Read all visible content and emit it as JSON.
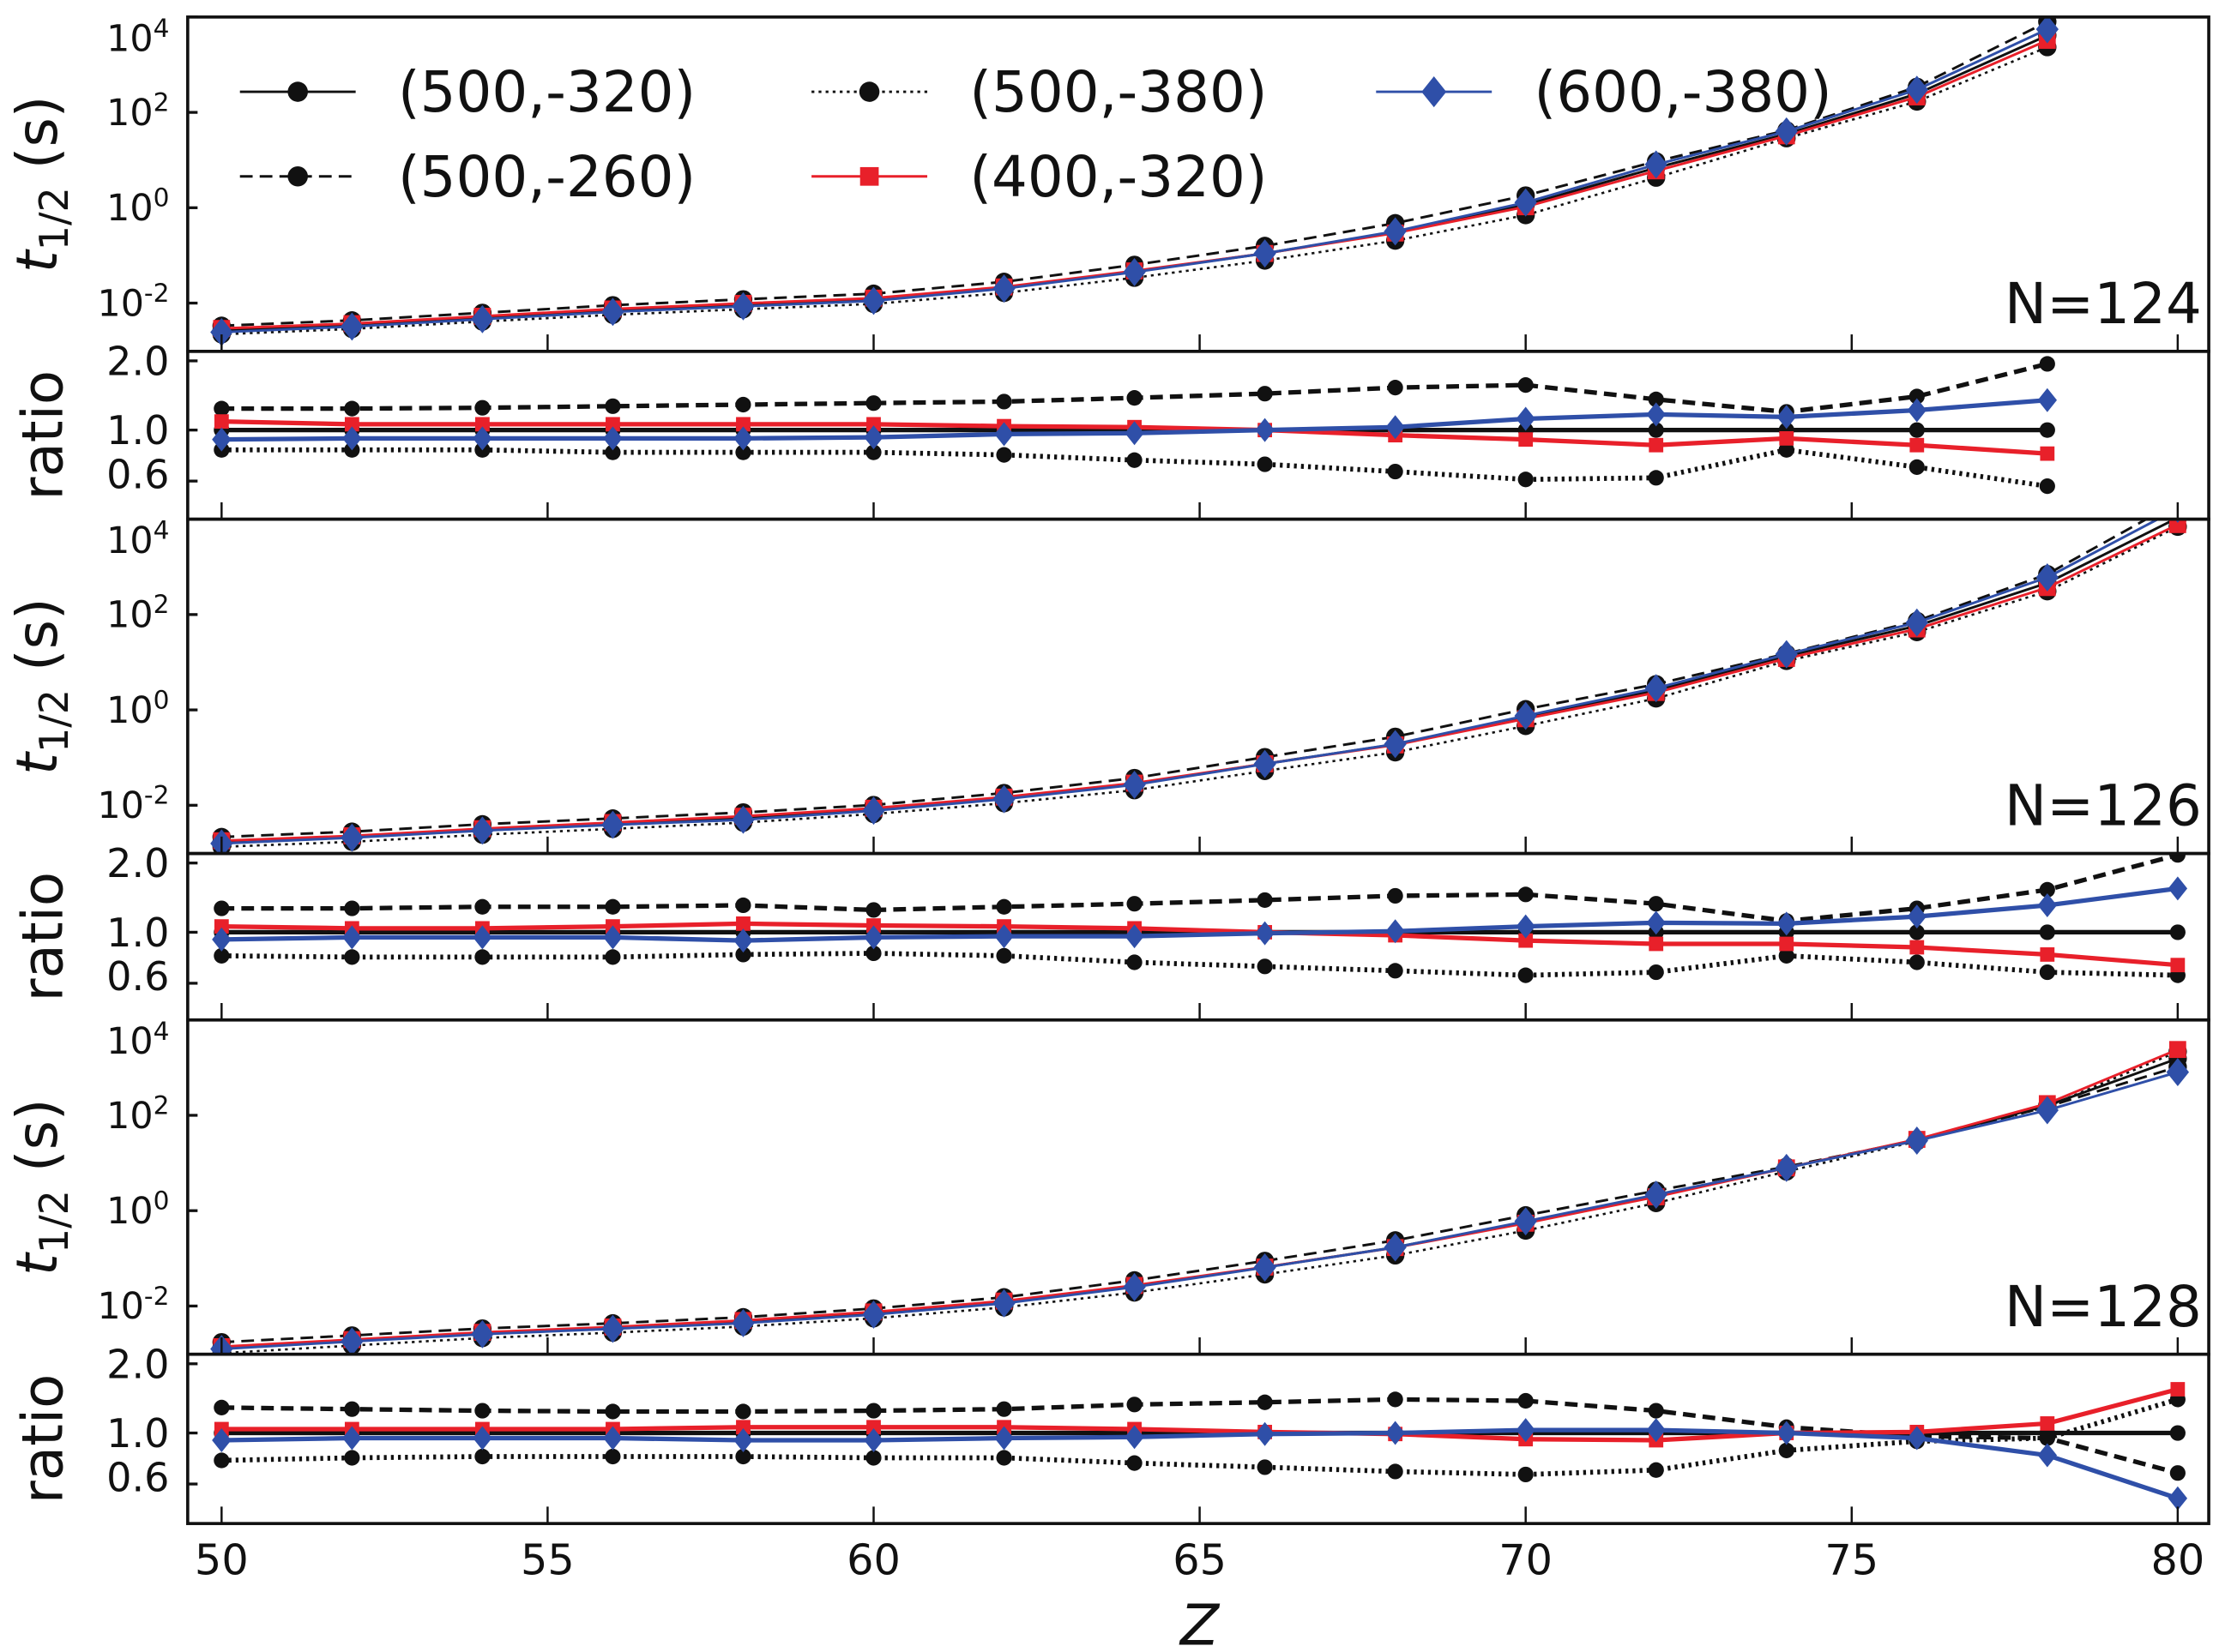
{
  "chart_data": {
    "type": "line",
    "x": [
      50,
      52,
      54,
      56,
      58,
      60,
      62,
      64,
      66,
      68,
      70,
      72,
      74,
      76,
      78,
      80
    ],
    "xlabel": "Z",
    "xlim": [
      49.5,
      80.5
    ],
    "xticks": [
      "50",
      "55",
      "60",
      "65",
      "70",
      "75",
      "80"
    ],
    "ylabel_main": {
      "t": "t",
      "sub": "1/2",
      "unit": " (s)"
    },
    "ylabel_ratio": "ratio",
    "yscale_main": "log",
    "ylim_main": [
      0.00085,
      10000
    ],
    "yticks_main": {
      "base": "10",
      "exponents": [
        "4",
        "2",
        "0",
        "-2"
      ]
    },
    "yscale_ratio": "log",
    "ylim_ratio": [
      0.4,
      2.2
    ],
    "yticks_ratio": [
      "2.0",
      "1.0",
      "0.6"
    ],
    "grid": false,
    "legend_placement": "top-left, first panel",
    "reference_series": "(500,-320)",
    "series_styles": [
      {
        "name": "(500,-320)",
        "color": "#111111",
        "dash": "solid",
        "marker": "circle"
      },
      {
        "name": "(500,-260)",
        "color": "#111111",
        "dash": "dashed",
        "marker": "circle"
      },
      {
        "name": "(500,-380)",
        "color": "#111111",
        "dash": "dotted",
        "marker": "circle"
      },
      {
        "name": "(400,-320)",
        "color": "#e8202a",
        "dash": "solid",
        "marker": "square"
      },
      {
        "name": "(600,-380)",
        "color": "#2f4fa8",
        "dash": "solid",
        "marker": "diamond"
      }
    ],
    "panels": [
      {
        "label": "N=124",
        "t_half_reference": [
          0.0027,
          0.0035,
          0.005,
          0.0071,
          0.0093,
          0.012,
          0.021,
          0.046,
          0.11,
          0.31,
          1.15,
          6.9,
          35,
          245,
          4100
        ],
        "ratio": {
          "(500,-320)": [
            1,
            1,
            1,
            1,
            1,
            1,
            1,
            1,
            1,
            1,
            1,
            1,
            1,
            1,
            1
          ],
          "(500,-260)": [
            1.24,
            1.24,
            1.25,
            1.27,
            1.29,
            1.31,
            1.33,
            1.38,
            1.44,
            1.53,
            1.57,
            1.36,
            1.2,
            1.4,
            1.94
          ],
          "(500,-380)": [
            0.82,
            0.82,
            0.82,
            0.8,
            0.8,
            0.8,
            0.78,
            0.74,
            0.71,
            0.66,
            0.61,
            0.62,
            0.82,
            0.69,
            0.57
          ],
          "(400,-320)": [
            1.09,
            1.06,
            1.06,
            1.06,
            1.06,
            1.06,
            1.04,
            1.03,
            1.0,
            0.95,
            0.91,
            0.86,
            0.92,
            0.86,
            0.79
          ],
          "(600,-380)": [
            0.91,
            0.92,
            0.92,
            0.92,
            0.92,
            0.93,
            0.96,
            0.97,
            1.0,
            1.03,
            1.12,
            1.17,
            1.14,
            1.22,
            1.35
          ]
        }
      },
      {
        "label": "N=126",
        "t_half_reference": [
          0.0017,
          0.0022,
          0.0031,
          0.0041,
          0.0054,
          0.0081,
          0.014,
          0.028,
          0.074,
          0.19,
          0.71,
          2.6,
          13.5,
          58,
          460,
          10700
        ],
        "ratio": {
          "(500,-320)": [
            1,
            1,
            1,
            1,
            1,
            1,
            1,
            1,
            1,
            1,
            1,
            1,
            1,
            1,
            1,
            1
          ],
          "(500,-260)": [
            1.27,
            1.27,
            1.29,
            1.29,
            1.31,
            1.25,
            1.29,
            1.33,
            1.38,
            1.44,
            1.46,
            1.33,
            1.12,
            1.27,
            1.53,
            2.17
          ],
          "(500,-380)": [
            0.79,
            0.78,
            0.78,
            0.78,
            0.8,
            0.81,
            0.79,
            0.74,
            0.71,
            0.68,
            0.65,
            0.67,
            0.79,
            0.74,
            0.67,
            0.65
          ],
          "(400,-320)": [
            1.06,
            1.04,
            1.04,
            1.06,
            1.09,
            1.07,
            1.06,
            1.04,
            1.0,
            0.97,
            0.92,
            0.89,
            0.89,
            0.86,
            0.8,
            0.72
          ],
          "(600,-380)": [
            0.93,
            0.95,
            0.95,
            0.95,
            0.92,
            0.95,
            0.96,
            0.96,
            0.99,
            1.01,
            1.06,
            1.1,
            1.09,
            1.17,
            1.31,
            1.55
          ]
        }
      },
      {
        "label": "N=128",
        "t_half_reference": [
          0.00135,
          0.0019,
          0.0027,
          0.0035,
          0.0047,
          0.0071,
          0.012,
          0.026,
          0.065,
          0.17,
          0.58,
          2.1,
          7.9,
          31,
          160,
          1550
        ],
        "ratio": {
          "(500,-320)": [
            1,
            1,
            1,
            1,
            1,
            1,
            1,
            1,
            1,
            1,
            1,
            1,
            1,
            1,
            1,
            1
          ],
          "(500,-260)": [
            1.29,
            1.27,
            1.25,
            1.24,
            1.24,
            1.25,
            1.27,
            1.33,
            1.36,
            1.4,
            1.38,
            1.25,
            1.06,
            0.97,
            0.95,
            0.67
          ],
          "(500,-380)": [
            0.76,
            0.78,
            0.79,
            0.79,
            0.79,
            0.78,
            0.78,
            0.74,
            0.71,
            0.68,
            0.66,
            0.69,
            0.84,
            0.92,
            0.95,
            1.4
          ],
          "(400,-320)": [
            1.04,
            1.04,
            1.04,
            1.04,
            1.06,
            1.06,
            1.06,
            1.04,
            1.01,
            0.99,
            0.94,
            0.93,
            1.0,
            1.01,
            1.1,
            1.55
          ],
          "(600,-380)": [
            0.93,
            0.95,
            0.95,
            0.95,
            0.93,
            0.93,
            0.95,
            0.96,
            0.99,
            1.0,
            1.03,
            1.03,
            1.0,
            0.95,
            0.8,
            0.52
          ]
        }
      }
    ]
  },
  "legend": {
    "items": [
      "(500,-320)",
      "(500,-260)",
      "(500,-380)",
      "(400,-320)",
      "(600,-380)"
    ]
  }
}
